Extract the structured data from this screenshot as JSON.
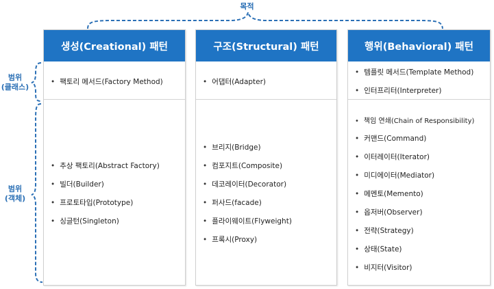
{
  "purpose_label": "목적",
  "scope_class_label": [
    "범위",
    "(클래스)"
  ],
  "scope_object_label": [
    "범위",
    "(객체)"
  ],
  "columns": {
    "creational": {
      "header": "생성(Creational) 패턴",
      "class_items": [
        "팩토리 메서드(Factory Method)"
      ],
      "object_items": [
        "추상 팩토리(Abstract Factory)",
        "빌더(Builder)",
        "프로토타입(Prototype)",
        "싱글턴(Singleton)"
      ]
    },
    "structural": {
      "header": "구조(Structural) 패턴",
      "class_items": [
        "어댑터(Adapter)"
      ],
      "object_items": [
        "브리지(Bridge)",
        "컴포지트(Composite)",
        "데코레이터(Decorator)",
        "퍼사드(facade)",
        "플라이웨이트(Flyweight)",
        "프록시(Proxy)"
      ]
    },
    "behavioral": {
      "header": "행위(Behavioral) 패턴",
      "class_items": [
        "템플릿 메서드(Template Method)",
        "인터프리터(Interpreter)"
      ],
      "object_items": [
        "책임 연쇄(Chain of Responsibility)",
        "커맨드(Command)",
        "이터레이터(Iterator)",
        "미디에이터(Mediator)",
        "메멘토(Memento)",
        "옵저버(Observer)",
        "전략(Strategy)",
        "상태(State)",
        "비지터(Visitor)"
      ]
    }
  },
  "colors": {
    "header_bg": "#1f74c4",
    "bracket": "#2a6fb5"
  }
}
